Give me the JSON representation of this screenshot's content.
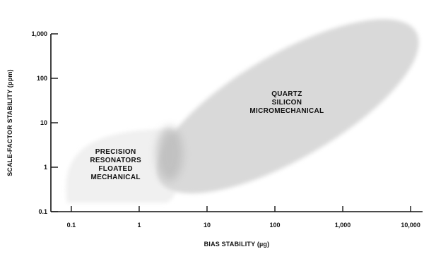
{
  "chart_data": {
    "type": "area",
    "title": "",
    "xlabel": "BIAS STABILITY (µg)",
    "ylabel": "SCALE-FACTOR STABILITY (ppm)",
    "x_scale": "log",
    "y_scale": "log",
    "xlim": [
      0.05,
      15000
    ],
    "ylim": [
      0.1,
      1000
    ],
    "x_ticks": [
      {
        "value": 0.1,
        "label": "0.1"
      },
      {
        "value": 1,
        "label": "1"
      },
      {
        "value": 10,
        "label": "10"
      },
      {
        "value": 100,
        "label": "100"
      },
      {
        "value": 1000,
        "label": "1,000"
      },
      {
        "value": 10000,
        "label": "10,000"
      }
    ],
    "y_ticks": [
      {
        "value": 0.1,
        "label": "0.1"
      },
      {
        "value": 1,
        "label": "1"
      },
      {
        "value": 10,
        "label": "10"
      },
      {
        "value": 100,
        "label": "100"
      },
      {
        "value": 1000,
        "label": "1,000"
      }
    ],
    "grid": false,
    "regions": [
      {
        "id": "micromechanical",
        "label_lines": [
          "QUARTZ",
          "SILICON",
          "MICROMECHANICAL"
        ],
        "x_range": [
          2,
          12000
        ],
        "y_range": [
          0.5,
          1100
        ],
        "label_at": [
          150,
          30
        ],
        "fill": "#d9d9d9"
      },
      {
        "id": "mechanical",
        "label_lines": [
          "PRECISION",
          "RESONATORS",
          "FLOATED",
          "MECHANICAL"
        ],
        "x_range": [
          0.08,
          4
        ],
        "y_range": [
          0.15,
          8
        ],
        "label_at": [
          0.45,
          1.2
        ],
        "fill": "#f0f0f0"
      }
    ],
    "overlap": {
      "x_range": [
        2,
        4
      ],
      "y_range": [
        0.5,
        8
      ],
      "fill": "#bdbdbd"
    }
  }
}
